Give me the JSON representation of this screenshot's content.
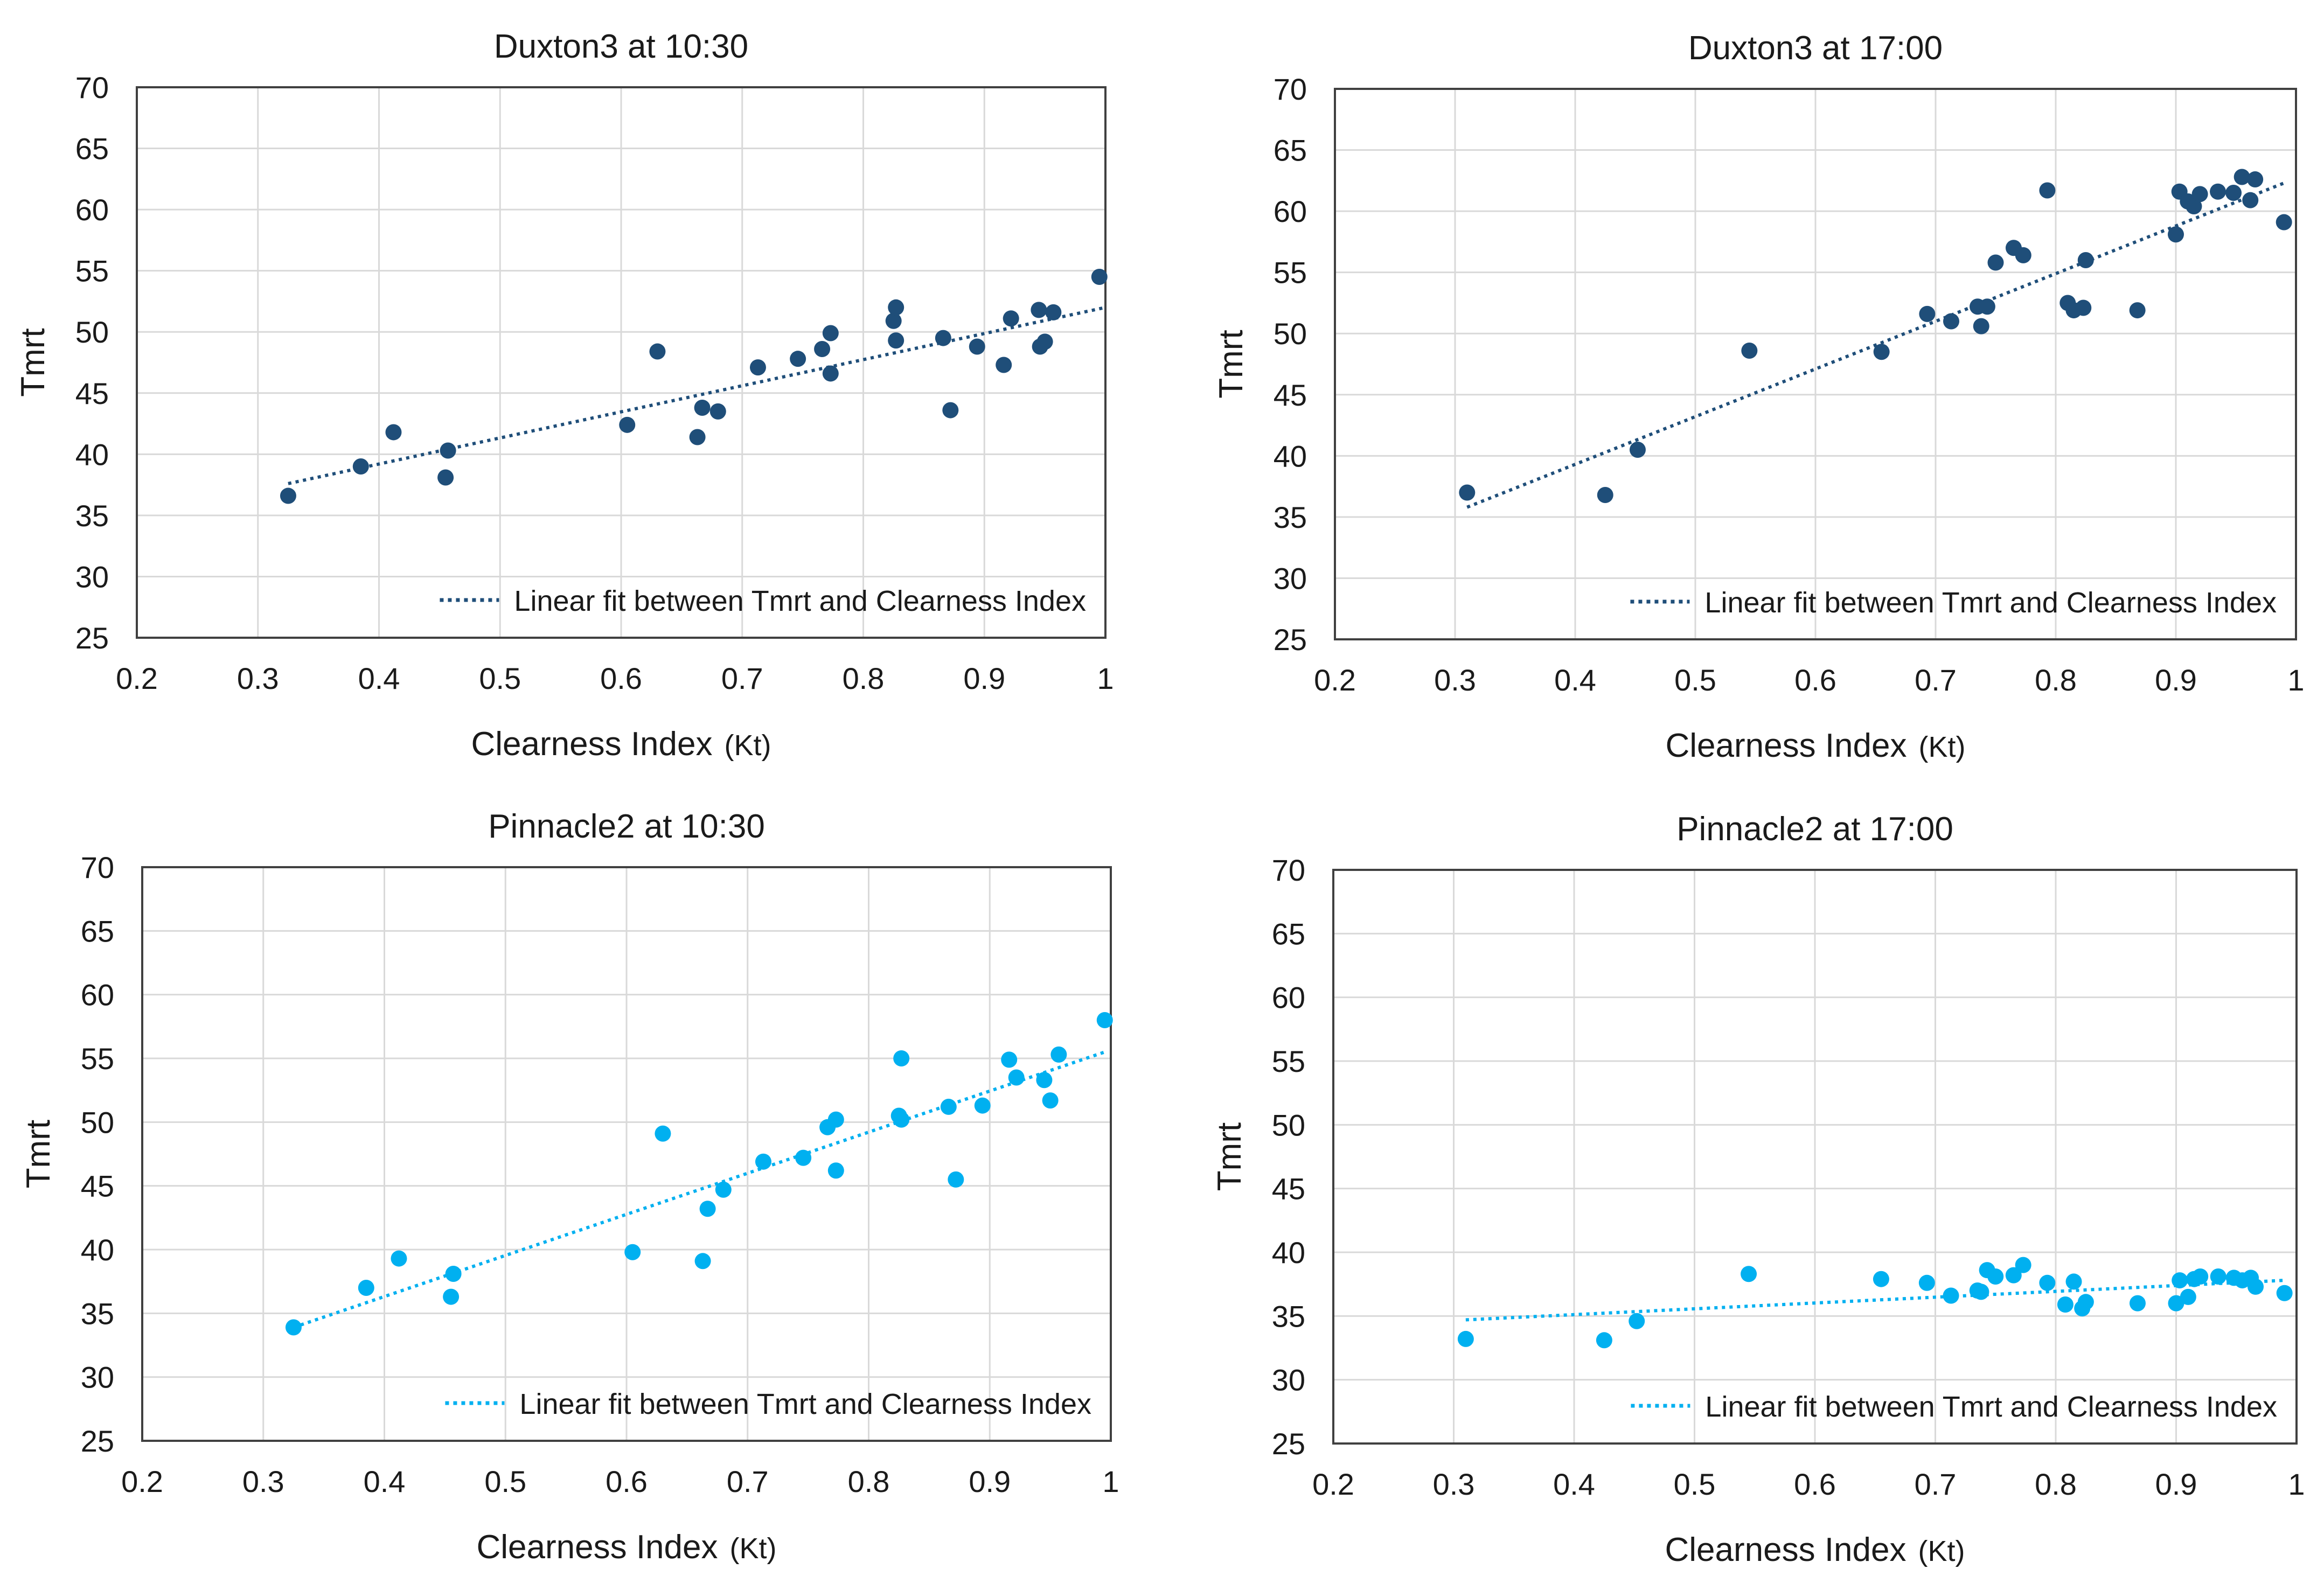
{
  "figure": {
    "charts": [
      {
        "type": "scatter",
        "title": "Duxton3 at 10:30",
        "xlabel": "Clearness Index",
        "xlabel_unit": "(Kt)",
        "ylabel": "Tmrt",
        "xlim": [
          0.2,
          1
        ],
        "ylim": [
          25,
          70
        ],
        "x_ticks": [
          "0.2",
          "0.3",
          "0.4",
          "0.5",
          "0.6",
          "0.7",
          "0.8",
          "0.9",
          "1"
        ],
        "y_ticks": [
          "70",
          "65",
          "60",
          "55",
          "50",
          "45",
          "40",
          "35",
          "30",
          "25"
        ],
        "color": "#1f4e79",
        "legend": "Linear fit between Tmrt and  Clearness Index",
        "legend_position": "bottom-right",
        "fit": {
          "x0": 0.325,
          "y0": 37.6,
          "x1": 1.0,
          "y1": 52.0
        },
        "points": [
          [
            0.325,
            36.6
          ],
          [
            0.385,
            39.0
          ],
          [
            0.412,
            41.8
          ],
          [
            0.455,
            38.1
          ],
          [
            0.457,
            40.3
          ],
          [
            0.605,
            42.4
          ],
          [
            0.63,
            48.4
          ],
          [
            0.663,
            41.4
          ],
          [
            0.667,
            43.8
          ],
          [
            0.68,
            43.5
          ],
          [
            0.713,
            47.1
          ],
          [
            0.746,
            47.8
          ],
          [
            0.766,
            48.6
          ],
          [
            0.773,
            49.9
          ],
          [
            0.773,
            46.6
          ],
          [
            0.825,
            50.9
          ],
          [
            0.827,
            52.0
          ],
          [
            0.827,
            49.3
          ],
          [
            0.866,
            49.5
          ],
          [
            0.872,
            43.6
          ],
          [
            0.894,
            48.8
          ],
          [
            0.916,
            47.3
          ],
          [
            0.922,
            51.1
          ],
          [
            0.945,
            51.8
          ],
          [
            0.946,
            48.8
          ],
          [
            0.95,
            49.2
          ],
          [
            0.957,
            51.6
          ],
          [
            0.995,
            54.5
          ]
        ]
      },
      {
        "type": "scatter",
        "title": "Duxton3 at 17:00",
        "xlabel": "Clearness Index",
        "xlabel_unit": "(Kt)",
        "ylabel": "Tmrt",
        "xlim": [
          0.2,
          1
        ],
        "ylim": [
          25,
          70
        ],
        "x_ticks": [
          "0.2",
          "0.3",
          "0.4",
          "0.5",
          "0.6",
          "0.7",
          "0.8",
          "0.9",
          "1"
        ],
        "y_ticks": [
          "70",
          "65",
          "60",
          "55",
          "50",
          "45",
          "40",
          "35",
          "30",
          "25"
        ],
        "color": "#1f4e79",
        "legend": "Linear fit between Tmrt and  Clearness Index",
        "legend_position": "bottom-right",
        "fit": {
          "x0": 0.31,
          "y0": 35.8,
          "x1": 0.99,
          "y1": 62.3
        },
        "points": [
          [
            0.31,
            37.0
          ],
          [
            0.425,
            36.8
          ],
          [
            0.452,
            40.5
          ],
          [
            0.545,
            48.6
          ],
          [
            0.655,
            48.5
          ],
          [
            0.693,
            51.6
          ],
          [
            0.713,
            51.0
          ],
          [
            0.735,
            52.2
          ],
          [
            0.738,
            50.6
          ],
          [
            0.743,
            52.2
          ],
          [
            0.75,
            55.8
          ],
          [
            0.765,
            57.0
          ],
          [
            0.773,
            56.4
          ],
          [
            0.793,
            61.7
          ],
          [
            0.81,
            52.5
          ],
          [
            0.815,
            51.9
          ],
          [
            0.823,
            52.1
          ],
          [
            0.825,
            56.0
          ],
          [
            0.868,
            51.9
          ],
          [
            0.9,
            58.1
          ],
          [
            0.903,
            61.6
          ],
          [
            0.91,
            60.8
          ],
          [
            0.915,
            60.4
          ],
          [
            0.92,
            61.4
          ],
          [
            0.935,
            61.6
          ],
          [
            0.948,
            61.5
          ],
          [
            0.955,
            62.8
          ],
          [
            0.962,
            60.9
          ],
          [
            0.966,
            62.6
          ],
          [
            0.99,
            59.1
          ]
        ]
      },
      {
        "type": "scatter",
        "title": "Pinnacle2 at 10:30",
        "xlabel": "Clearness Index",
        "xlabel_unit": "(Kt)",
        "ylabel": "Tmrt",
        "xlim": [
          0.2,
          1
        ],
        "ylim": [
          25,
          70
        ],
        "x_ticks": [
          "0.2",
          "0.3",
          "0.4",
          "0.5",
          "0.6",
          "0.7",
          "0.8",
          "0.9",
          "1"
        ],
        "y_ticks": [
          "70",
          "65",
          "60",
          "55",
          "50",
          "45",
          "40",
          "35",
          "30",
          "25"
        ],
        "color": "#00b0f0",
        "legend": "Linear fit between Tmrt and  Clearness Index",
        "legend_position": "bottom-right",
        "fit": {
          "x0": 0.325,
          "y0": 33.9,
          "x1": 0.995,
          "y1": 55.5
        },
        "points": [
          [
            0.325,
            33.9
          ],
          [
            0.385,
            37.0
          ],
          [
            0.412,
            39.3
          ],
          [
            0.455,
            36.3
          ],
          [
            0.457,
            38.1
          ],
          [
            0.605,
            39.8
          ],
          [
            0.63,
            49.1
          ],
          [
            0.663,
            39.1
          ],
          [
            0.667,
            43.2
          ],
          [
            0.68,
            44.7
          ],
          [
            0.713,
            46.9
          ],
          [
            0.746,
            47.2
          ],
          [
            0.766,
            49.6
          ],
          [
            0.773,
            50.2
          ],
          [
            0.773,
            46.2
          ],
          [
            0.825,
            50.5
          ],
          [
            0.827,
            55.0
          ],
          [
            0.827,
            50.2
          ],
          [
            0.866,
            51.2
          ],
          [
            0.872,
            45.5
          ],
          [
            0.894,
            51.3
          ],
          [
            0.916,
            54.9
          ],
          [
            0.922,
            53.5
          ],
          [
            0.945,
            53.3
          ],
          [
            0.95,
            51.7
          ],
          [
            0.957,
            55.3
          ],
          [
            0.995,
            58.0
          ]
        ]
      },
      {
        "type": "scatter",
        "title": "Pinnacle2 at 17:00",
        "xlabel": "Clearness Index",
        "xlabel_unit": "(Kt)",
        "ylabel": "Tmrt",
        "xlim": [
          0.2,
          1
        ],
        "ylim": [
          25,
          70
        ],
        "x_ticks": [
          "0.2",
          "0.3",
          "0.4",
          "0.5",
          "0.6",
          "0.7",
          "0.8",
          "0.9",
          "1"
        ],
        "y_ticks": [
          "70",
          "65",
          "60",
          "55",
          "50",
          "45",
          "40",
          "35",
          "30",
          "25"
        ],
        "color": "#00b0f0",
        "legend": "Linear fit between Tmrt and  Clearness Index",
        "legend_position": "bottom-right",
        "fit": {
          "x0": 0.31,
          "y0": 34.7,
          "x1": 0.99,
          "y1": 37.8
        },
        "points": [
          [
            0.31,
            33.2
          ],
          [
            0.425,
            33.1
          ],
          [
            0.452,
            34.6
          ],
          [
            0.545,
            38.3
          ],
          [
            0.655,
            37.9
          ],
          [
            0.693,
            37.6
          ],
          [
            0.713,
            36.6
          ],
          [
            0.735,
            37.0
          ],
          [
            0.738,
            36.9
          ],
          [
            0.743,
            38.6
          ],
          [
            0.75,
            38.1
          ],
          [
            0.765,
            38.2
          ],
          [
            0.773,
            39.0
          ],
          [
            0.793,
            37.6
          ],
          [
            0.808,
            35.9
          ],
          [
            0.815,
            37.7
          ],
          [
            0.822,
            35.6
          ],
          [
            0.825,
            36.1
          ],
          [
            0.868,
            36.0
          ],
          [
            0.9,
            36.0
          ],
          [
            0.903,
            37.8
          ],
          [
            0.91,
            36.5
          ],
          [
            0.915,
            37.9
          ],
          [
            0.92,
            38.1
          ],
          [
            0.935,
            38.1
          ],
          [
            0.948,
            38.0
          ],
          [
            0.955,
            37.8
          ],
          [
            0.962,
            38.0
          ],
          [
            0.966,
            37.3
          ],
          [
            0.99,
            36.8
          ]
        ]
      }
    ]
  }
}
